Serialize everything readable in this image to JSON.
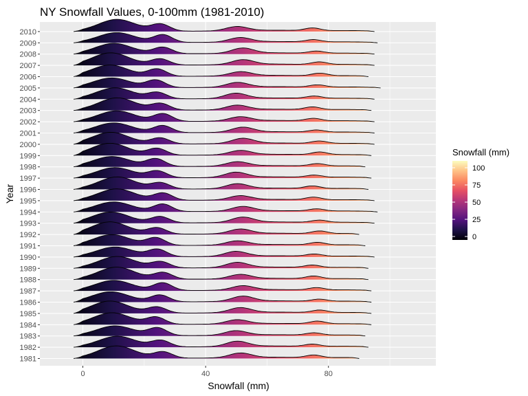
{
  "chart_data": {
    "type": "ridgeline",
    "title": "NY Snowfall Values, 0-100mm (1981-2010)",
    "xlabel": "Snowfall (mm)",
    "ylabel": "Year",
    "xlim": [
      -14,
      115
    ],
    "x_ticks": [
      0,
      40,
      80
    ],
    "x_minor_ticks": [
      -20,
      20,
      60,
      100
    ],
    "categories": [
      "1981",
      "1982",
      "1983",
      "1984",
      "1985",
      "1986",
      "1987",
      "1988",
      "1989",
      "1990",
      "1991",
      "1992",
      "1993",
      "1994",
      "1995",
      "1996",
      "1997",
      "1998",
      "1999",
      "2000",
      "2001",
      "2002",
      "2003",
      "2004",
      "2005",
      "2006",
      "2007",
      "2008",
      "2009",
      "2010"
    ],
    "x_range_per_year": {
      "1981": [
        -3,
        90
      ],
      "1982": [
        -3,
        93
      ],
      "1983": [
        -3,
        92
      ],
      "1984": [
        -3,
        94
      ],
      "1985": [
        -3,
        94
      ],
      "1986": [
        -3,
        94
      ],
      "1987": [
        -3,
        94
      ],
      "1988": [
        -3,
        93
      ],
      "1989": [
        -3,
        93
      ],
      "1990": [
        -3,
        95
      ],
      "1991": [
        -3,
        92
      ],
      "1992": [
        -3,
        90
      ],
      "1993": [
        -3,
        95
      ],
      "1994": [
        -3,
        96
      ],
      "1995": [
        -3,
        95
      ],
      "1996": [
        -3,
        93
      ],
      "1997": [
        -3,
        94
      ],
      "1998": [
        -3,
        92
      ],
      "1999": [
        -3,
        94
      ],
      "2000": [
        -3,
        95
      ],
      "2001": [
        -3,
        95
      ],
      "2002": [
        -3,
        95
      ],
      "2003": [
        -3,
        94
      ],
      "2004": [
        -3,
        95
      ],
      "2005": [
        -3,
        97
      ],
      "2006": [
        -3,
        93
      ],
      "2007": [
        -3,
        95
      ],
      "2008": [
        -3,
        95
      ],
      "2009": [
        -3,
        96
      ],
      "2010": [
        -3,
        95
      ]
    },
    "density_modes": [
      {
        "center": 10,
        "height": 1.0,
        "width": 6
      },
      {
        "center": 25,
        "height": 0.62,
        "width": 3
      },
      {
        "center": 51,
        "height": 0.42,
        "width": 3.5
      },
      {
        "center": 76,
        "height": 0.22,
        "width": 2.5
      }
    ],
    "fill_scale": {
      "name": "Snowfall (mm)",
      "palette": "magma",
      "limits": [
        -5,
        110
      ],
      "breaks": [
        0,
        25,
        50,
        75,
        100
      ],
      "colors": [
        "#000004",
        "#1d1147",
        "#51127c",
        "#822681",
        "#b63679",
        "#e65164",
        "#fb8861",
        "#fec287",
        "#fcfdbf"
      ]
    },
    "panel_background": "#ebebeb",
    "grid_color": "#ffffff",
    "outline_color": "#000000"
  }
}
